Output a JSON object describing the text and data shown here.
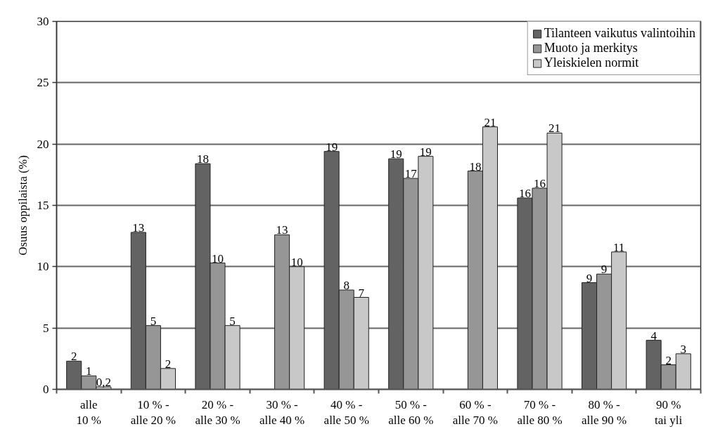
{
  "chart_data": {
    "type": "bar",
    "ylabel": "Osuus oppilaista (%)",
    "categories": [
      "alle\n10 %",
      "10 % -\nalle 20 %",
      "20 % -\nalle 30 %",
      "30 % -\nalle 40 %",
      "40 % -\nalle 50 %",
      "50 % -\nalle 60 %",
      "60 % -\nalle 70 %",
      "70 % -\nalle 80 %",
      "80 % -\nalle 90 %",
      "90 %\ntai yli"
    ],
    "series": [
      {
        "name": "Tilanteen vaikutus valintoihin",
        "color": "#636363",
        "values": [
          2.3,
          12.8,
          18.4,
          null,
          19.4,
          18.8,
          null,
          15.6,
          8.7,
          4.0
        ],
        "value_labels": [
          "2",
          "13",
          "18",
          null,
          "19",
          "19",
          null,
          "16",
          "9",
          "4"
        ]
      },
      {
        "name": "Muoto ja merkitys",
        "color": "#969696",
        "values": [
          1.1,
          5.2,
          10.3,
          12.6,
          8.1,
          17.2,
          17.8,
          16.4,
          9.4,
          2.0
        ],
        "value_labels": [
          "1",
          "5",
          "10",
          "13",
          "8",
          "17",
          "18",
          "16",
          "9",
          "2"
        ]
      },
      {
        "name": "Yleiskielen normit",
        "color": "#c8c8c8",
        "values": [
          0.2,
          1.7,
          5.2,
          10.0,
          7.5,
          19.0,
          21.4,
          20.9,
          11.2,
          2.9
        ],
        "value_labels": [
          "0,2",
          "2",
          "5",
          "10",
          "7",
          "19",
          "21",
          "21",
          "11",
          "3"
        ]
      }
    ],
    "ylim": [
      0,
      30
    ],
    "yticks": [
      0,
      5,
      10,
      15,
      20,
      25,
      30
    ],
    "grid": "y",
    "legend": "top right"
  }
}
